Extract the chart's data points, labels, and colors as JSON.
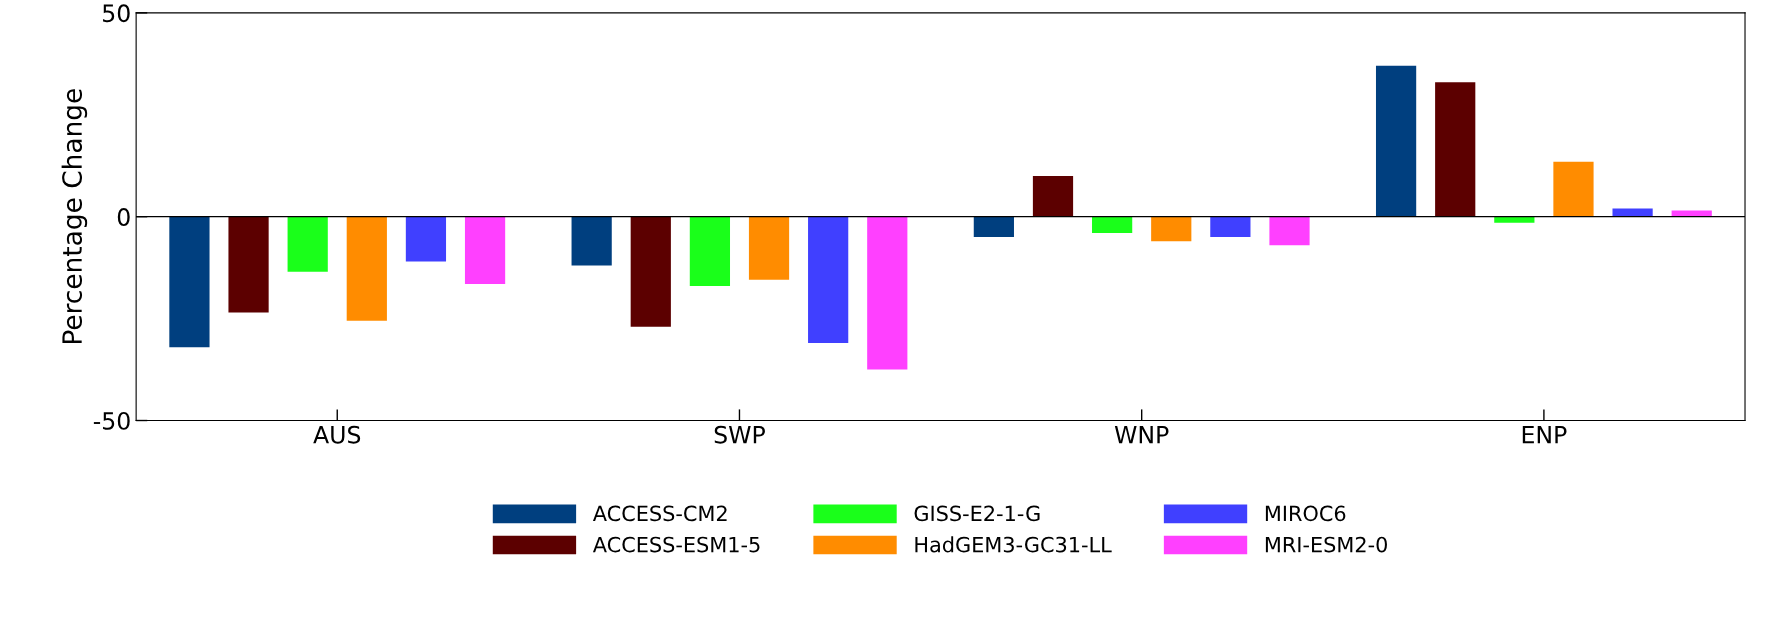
{
  "chart_data": {
    "type": "bar",
    "ylabel": "Percentage Change",
    "categories": [
      "AUS",
      "SWP",
      "WNP",
      "ENP"
    ],
    "series": [
      {
        "name": "ACCESS-CM2",
        "color": "#003f7f",
        "values": [
          -32,
          -12,
          -5,
          37
        ]
      },
      {
        "name": "ACCESS-ESM1-5",
        "color": "#5c0000",
        "values": [
          -23.5,
          -27,
          10,
          33
        ]
      },
      {
        "name": "GISS-E2-1-G",
        "color": "#1aff1a",
        "values": [
          -13.5,
          -17,
          -4,
          -1.5
        ]
      },
      {
        "name": "HadGEM3-GC31-LL",
        "color": "#ff8c00",
        "values": [
          -25.5,
          -15.5,
          -6,
          13.5
        ]
      },
      {
        "name": "MIROC6",
        "color": "#4040ff",
        "values": [
          -11,
          -31,
          -5,
          2
        ]
      },
      {
        "name": "MRI-ESM2-0",
        "color": "#ff40ff",
        "values": [
          -16.5,
          -37.5,
          -7,
          1.5
        ]
      }
    ],
    "ylim": [
      -50,
      50
    ],
    "yticks": [
      -50,
      0,
      50
    ],
    "ref_lines": [
      {
        "axis": "y",
        "value": 0,
        "color": "#000000"
      }
    ],
    "grid": false,
    "legend": "bottom"
  }
}
